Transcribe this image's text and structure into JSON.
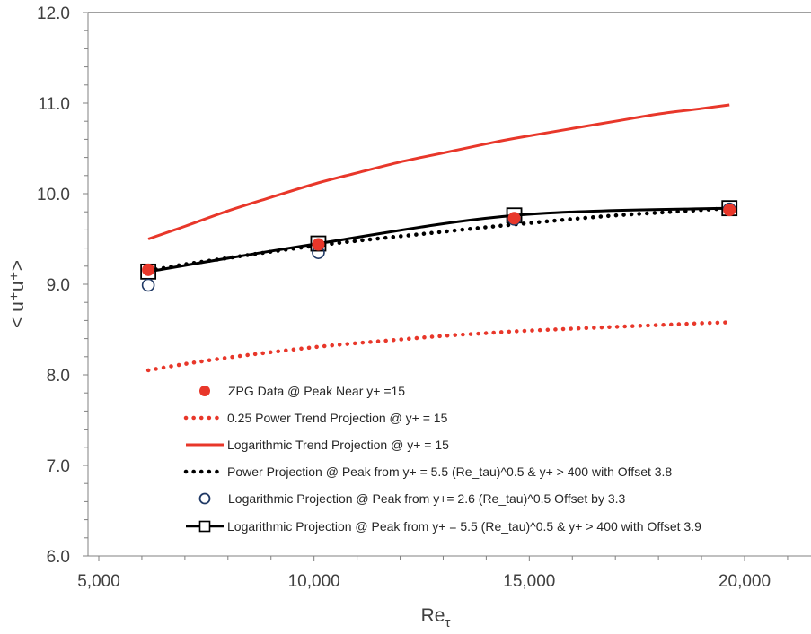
{
  "chart_data": {
    "type": "line",
    "xlabel": "Re",
    "xlabel_sub": "τ",
    "ylabel": "< u⁺u⁺>",
    "xlim": [
      5000,
      22000
    ],
    "ylim": [
      6.0,
      12.0
    ],
    "x_ticks": [
      5000,
      10000,
      15000,
      20000
    ],
    "x_tick_labels": [
      "5,000",
      "10,000",
      "15,000",
      "20,000"
    ],
    "y_ticks": [
      6,
      7,
      8,
      9,
      10,
      11,
      12
    ],
    "y_tick_labels": [
      "6.0",
      "7.0",
      "8.0",
      "9.0",
      "10.0",
      "11.0",
      "12.0"
    ],
    "grid": false,
    "legend_position": "bottom-center",
    "series": [
      {
        "name": "ZPG Data @ Peak Near  y+ =15",
        "style": "marker-filled-circle",
        "color": "#e8372a",
        "x": [
          6150,
          10100,
          14650,
          19650
        ],
        "y": [
          9.16,
          9.44,
          9.73,
          9.82
        ]
      },
      {
        "name": "0.25 Power Trend Projection @ y+ = 15",
        "style": "dotted-line",
        "color": "#e8372a",
        "x": [
          6150,
          7000,
          8000,
          9000,
          10100,
          11000,
          12000,
          13000,
          14000,
          14650,
          16000,
          17000,
          18000,
          19000,
          19650
        ],
        "y": [
          8.05,
          8.12,
          8.19,
          8.25,
          8.31,
          8.35,
          8.39,
          8.43,
          8.46,
          8.48,
          8.51,
          8.53,
          8.55,
          8.57,
          8.58
        ]
      },
      {
        "name": "Logarithmic Trend Projection @ y+ = 15",
        "style": "solid-line",
        "color": "#e8372a",
        "x": [
          6150,
          7000,
          8000,
          9000,
          10100,
          11000,
          12000,
          13000,
          14000,
          14650,
          16000,
          17000,
          18000,
          19000,
          19650
        ],
        "y": [
          9.5,
          9.64,
          9.81,
          9.96,
          10.12,
          10.23,
          10.35,
          10.45,
          10.55,
          10.61,
          10.72,
          10.8,
          10.88,
          10.94,
          10.98
        ]
      },
      {
        "name": "Power Projection @ Peak from y+ = 5.5 (Re_tau)^0.5 & y+ > 400 with Offset 3.8",
        "style": "dotted-line",
        "color": "#000000",
        "x": [
          6150,
          7000,
          8000,
          9000,
          10100,
          11000,
          12000,
          13000,
          14000,
          14650,
          16000,
          17000,
          18000,
          19000,
          19650
        ],
        "y": [
          9.15,
          9.22,
          9.29,
          9.36,
          9.43,
          9.48,
          9.53,
          9.58,
          9.63,
          9.66,
          9.72,
          9.76,
          9.79,
          9.82,
          9.84
        ]
      },
      {
        "name": "Logarithmic Projection @ Peak from y+= 2.6 (Re_tau)^0.5 Offset by 3.3",
        "style": "marker-open-circle",
        "color": "#1f3864",
        "x": [
          6150,
          10100,
          14650,
          19650
        ],
        "y": [
          8.99,
          9.35,
          9.72,
          9.83
        ]
      },
      {
        "name": "Logarithmic Projection @ Peak from y+ = 5.5 (Re_tau)^0.5 & y+ > 400 with Offset 3.9",
        "style": "solid-line-open-square",
        "color": "#000000",
        "x": [
          6150,
          10100,
          14650,
          19650
        ],
        "y": [
          9.14,
          9.45,
          9.76,
          9.84
        ]
      }
    ]
  }
}
